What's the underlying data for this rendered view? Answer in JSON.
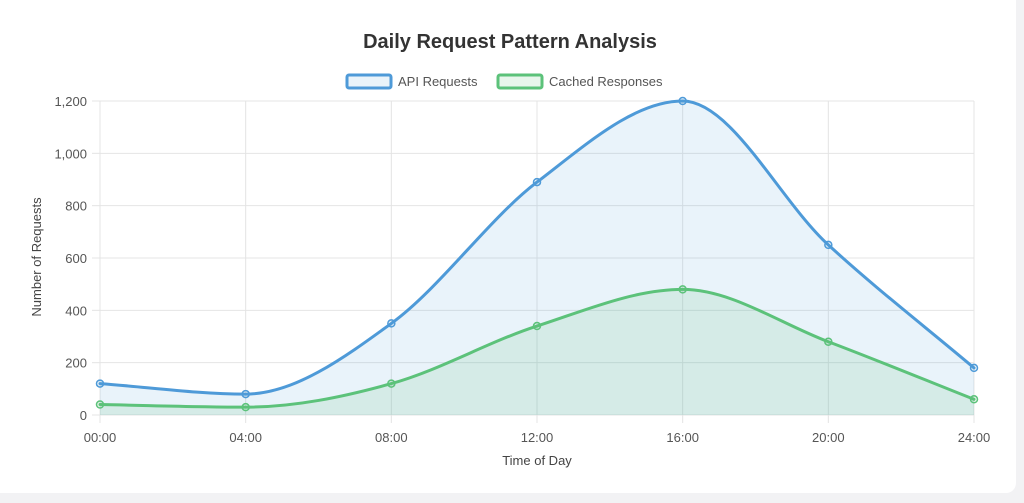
{
  "chart_data": {
    "type": "area",
    "title": "Daily Request Pattern Analysis",
    "xlabel": "Time of Day",
    "ylabel": "Number of Requests",
    "categories": [
      "00:00",
      "04:00",
      "08:00",
      "12:00",
      "16:00",
      "20:00",
      "24:00"
    ],
    "ylim": [
      0,
      1200
    ],
    "yticks": [
      0,
      200,
      400,
      600,
      800,
      1000,
      1200
    ],
    "ytick_labels": [
      "0",
      "200",
      "400",
      "600",
      "800",
      "1,000",
      "1,200"
    ],
    "grid": true,
    "legend_position": "top-center",
    "series": [
      {
        "name": "API Requests",
        "values": [
          120,
          80,
          350,
          890,
          1200,
          650,
          180
        ],
        "color": "#4e9ad8",
        "fill": "rgba(78,154,216,0.12)"
      },
      {
        "name": "Cached Responses",
        "values": [
          40,
          30,
          120,
          340,
          480,
          280,
          60
        ],
        "color": "#5cc27a",
        "fill": "rgba(92,194,122,0.14)"
      }
    ]
  }
}
